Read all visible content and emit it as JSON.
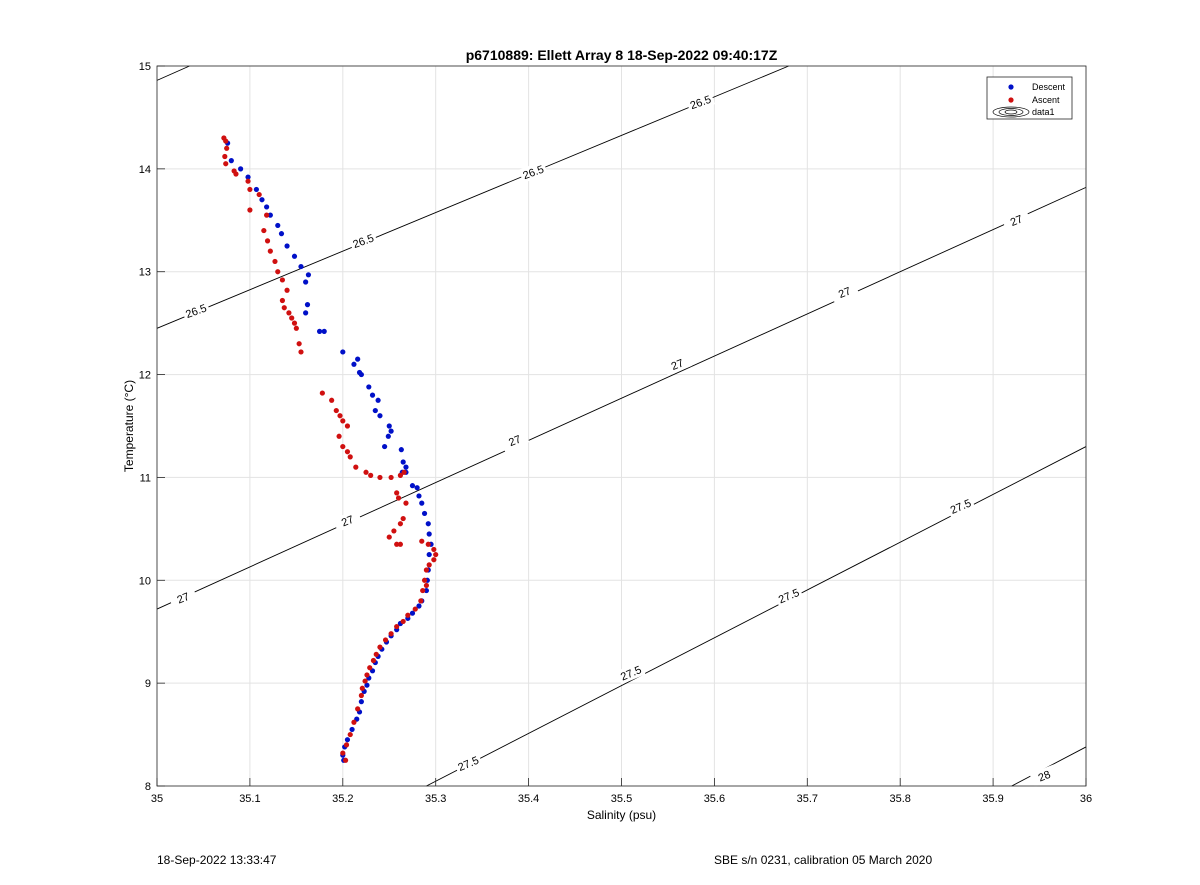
{
  "chart_data": {
    "type": "scatter",
    "title": "p6710889: Ellett Array 8 18-Sep-2022 09:40:17Z",
    "xlabel": "Salinity (psu)",
    "ylabel": "Temperature (°C)",
    "xlim": [
      35,
      36
    ],
    "ylim": [
      8,
      15
    ],
    "xticks": [
      "35",
      "35.1",
      "35.2",
      "35.3",
      "35.4",
      "35.5",
      "35.6",
      "35.7",
      "35.8",
      "35.9",
      "36"
    ],
    "yticks": [
      "8",
      "9",
      "10",
      "11",
      "12",
      "13",
      "14",
      "15"
    ],
    "grid": true,
    "legend_position": "top-right",
    "legend": [
      "Descent",
      "Ascent",
      "data1"
    ],
    "series": [
      {
        "name": "Descent",
        "color": "#0010c8",
        "points": [
          [
            35.076,
            14.25
          ],
          [
            35.08,
            14.08
          ],
          [
            35.09,
            14.0
          ],
          [
            35.098,
            13.92
          ],
          [
            35.107,
            13.8
          ],
          [
            35.113,
            13.7
          ],
          [
            35.118,
            13.63
          ],
          [
            35.122,
            13.55
          ],
          [
            35.13,
            13.45
          ],
          [
            35.134,
            13.37
          ],
          [
            35.14,
            13.25
          ],
          [
            35.148,
            13.15
          ],
          [
            35.155,
            13.05
          ],
          [
            35.163,
            12.97
          ],
          [
            35.16,
            12.9
          ],
          [
            35.162,
            12.68
          ],
          [
            35.16,
            12.6
          ],
          [
            35.175,
            12.42
          ],
          [
            35.18,
            12.42
          ],
          [
            35.2,
            12.22
          ],
          [
            35.212,
            12.1
          ],
          [
            35.216,
            12.15
          ],
          [
            35.218,
            12.02
          ],
          [
            35.22,
            12.0
          ],
          [
            35.228,
            11.88
          ],
          [
            35.232,
            11.8
          ],
          [
            35.238,
            11.75
          ],
          [
            35.235,
            11.65
          ],
          [
            35.24,
            11.6
          ],
          [
            35.25,
            11.5
          ],
          [
            35.249,
            11.4
          ],
          [
            35.245,
            11.3
          ],
          [
            35.252,
            11.45
          ],
          [
            35.263,
            11.27
          ],
          [
            35.265,
            11.15
          ],
          [
            35.268,
            11.1
          ],
          [
            35.264,
            11.05
          ],
          [
            35.268,
            11.05
          ],
          [
            35.275,
            10.92
          ],
          [
            35.28,
            10.9
          ],
          [
            35.282,
            10.82
          ],
          [
            35.285,
            10.75
          ],
          [
            35.288,
            10.65
          ],
          [
            35.292,
            10.55
          ],
          [
            35.293,
            10.45
          ],
          [
            35.295,
            10.35
          ],
          [
            35.293,
            10.25
          ],
          [
            35.292,
            10.1
          ],
          [
            35.291,
            10.0
          ],
          [
            35.29,
            9.9
          ],
          [
            35.285,
            9.8
          ],
          [
            35.282,
            9.75
          ],
          [
            35.275,
            9.68
          ],
          [
            35.27,
            9.63
          ],
          [
            35.262,
            9.58
          ],
          [
            35.258,
            9.52
          ],
          [
            35.252,
            9.46
          ],
          [
            35.247,
            9.4
          ],
          [
            35.242,
            9.33
          ],
          [
            35.238,
            9.26
          ],
          [
            35.235,
            9.2
          ],
          [
            35.232,
            9.12
          ],
          [
            35.228,
            9.05
          ],
          [
            35.226,
            8.98
          ],
          [
            35.223,
            8.92
          ],
          [
            35.22,
            8.82
          ],
          [
            35.218,
            8.72
          ],
          [
            35.215,
            8.65
          ],
          [
            35.21,
            8.55
          ],
          [
            35.205,
            8.45
          ],
          [
            35.202,
            8.38
          ],
          [
            35.2,
            8.3
          ],
          [
            35.201,
            8.25
          ]
        ]
      },
      {
        "name": "Ascent",
        "color": "#d01010",
        "points": [
          [
            35.072,
            14.3
          ],
          [
            35.074,
            14.27
          ],
          [
            35.075,
            14.2
          ],
          [
            35.073,
            14.12
          ],
          [
            35.074,
            14.05
          ],
          [
            35.083,
            13.98
          ],
          [
            35.085,
            13.95
          ],
          [
            35.098,
            13.88
          ],
          [
            35.1,
            13.8
          ],
          [
            35.11,
            13.75
          ],
          [
            35.1,
            13.6
          ],
          [
            35.118,
            13.55
          ],
          [
            35.115,
            13.4
          ],
          [
            35.119,
            13.3
          ],
          [
            35.122,
            13.2
          ],
          [
            35.127,
            13.1
          ],
          [
            35.13,
            13.0
          ],
          [
            35.135,
            12.92
          ],
          [
            35.14,
            12.82
          ],
          [
            35.135,
            12.72
          ],
          [
            35.137,
            12.65
          ],
          [
            35.142,
            12.6
          ],
          [
            35.145,
            12.55
          ],
          [
            35.148,
            12.5
          ],
          [
            35.15,
            12.45
          ],
          [
            35.153,
            12.3
          ],
          [
            35.155,
            12.22
          ],
          [
            35.178,
            11.82
          ],
          [
            35.188,
            11.75
          ],
          [
            35.193,
            11.65
          ],
          [
            35.197,
            11.6
          ],
          [
            35.2,
            11.55
          ],
          [
            35.205,
            11.5
          ],
          [
            35.196,
            11.4
          ],
          [
            35.2,
            11.3
          ],
          [
            35.205,
            11.25
          ],
          [
            35.208,
            11.2
          ],
          [
            35.214,
            11.1
          ],
          [
            35.225,
            11.05
          ],
          [
            35.23,
            11.02
          ],
          [
            35.24,
            11.0
          ],
          [
            35.252,
            11.0
          ],
          [
            35.262,
            11.02
          ],
          [
            35.266,
            11.05
          ],
          [
            35.258,
            10.85
          ],
          [
            35.26,
            10.8
          ],
          [
            35.268,
            10.75
          ],
          [
            35.265,
            10.6
          ],
          [
            35.262,
            10.55
          ],
          [
            35.255,
            10.48
          ],
          [
            35.25,
            10.42
          ],
          [
            35.258,
            10.35
          ],
          [
            35.262,
            10.35
          ],
          [
            35.285,
            10.38
          ],
          [
            35.292,
            10.35
          ],
          [
            35.298,
            10.3
          ],
          [
            35.3,
            10.25
          ],
          [
            35.298,
            10.2
          ],
          [
            35.293,
            10.15
          ],
          [
            35.29,
            10.1
          ],
          [
            35.288,
            10.0
          ],
          [
            35.29,
            9.95
          ],
          [
            35.286,
            9.9
          ],
          [
            35.284,
            9.8
          ],
          [
            35.278,
            9.72
          ],
          [
            35.27,
            9.66
          ],
          [
            35.265,
            9.6
          ],
          [
            35.258,
            9.55
          ],
          [
            35.252,
            9.48
          ],
          [
            35.246,
            9.42
          ],
          [
            35.24,
            9.35
          ],
          [
            35.236,
            9.28
          ],
          [
            35.233,
            9.22
          ],
          [
            35.229,
            9.15
          ],
          [
            35.226,
            9.08
          ],
          [
            35.224,
            9.02
          ],
          [
            35.221,
            8.95
          ],
          [
            35.22,
            8.88
          ],
          [
            35.216,
            8.75
          ],
          [
            35.212,
            8.62
          ],
          [
            35.208,
            8.5
          ],
          [
            35.204,
            8.4
          ],
          [
            35.2,
            8.32
          ],
          [
            35.203,
            8.25
          ]
        ]
      }
    ],
    "contour_labels": [
      "26.5",
      "27",
      "27.5",
      "28"
    ]
  },
  "footer": {
    "left": "18-Sep-2022 13:33:47",
    "right": "SBE s/n 0231, calibration 05 March 2020"
  }
}
